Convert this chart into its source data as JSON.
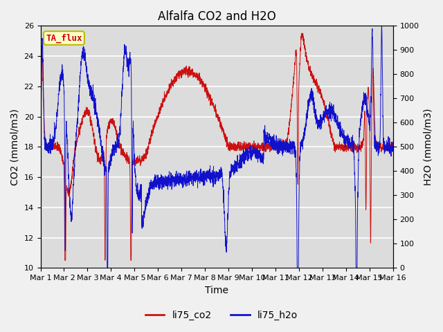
{
  "title": "Alfalfa CO2 and H2O",
  "xlabel": "Time",
  "ylabel_left": "CO2 (mmol/m3)",
  "ylabel_right": "H2O (mmol/m3)",
  "ylim_left": [
    10,
    26
  ],
  "ylim_right": [
    0,
    1000
  ],
  "yticks_left": [
    10,
    12,
    14,
    16,
    18,
    20,
    22,
    24,
    26
  ],
  "yticks_right": [
    0,
    100,
    200,
    300,
    400,
    500,
    600,
    700,
    800,
    900,
    1000
  ],
  "xtick_labels": [
    "Mar 1",
    "Mar 2",
    "Mar 3",
    "Mar 4",
    "Mar 5",
    "Mar 6",
    "Mar 7",
    "Mar 8",
    "Mar 9",
    "Mar 10",
    "Mar 11",
    "Mar 12",
    "Mar 13",
    "Mar 14",
    "Mar 15",
    "Mar 16"
  ],
  "legend_labels": [
    "li75_co2",
    "li75_h2o"
  ],
  "legend_colors": [
    "#cc1111",
    "#1111cc"
  ],
  "annotation_text": "TA_flux",
  "annotation_color": "#cc0000",
  "annotation_bg": "#ffffcc",
  "annotation_border": "#bbbb00",
  "plot_bg": "#dcdcdc",
  "fig_bg": "#f0f0f0",
  "line_color_co2": "#cc1111",
  "line_color_h2o": "#1111cc",
  "grid_color": "#ffffff",
  "title_fontsize": 12,
  "axis_fontsize": 10,
  "tick_fontsize": 8,
  "legend_fontsize": 10
}
